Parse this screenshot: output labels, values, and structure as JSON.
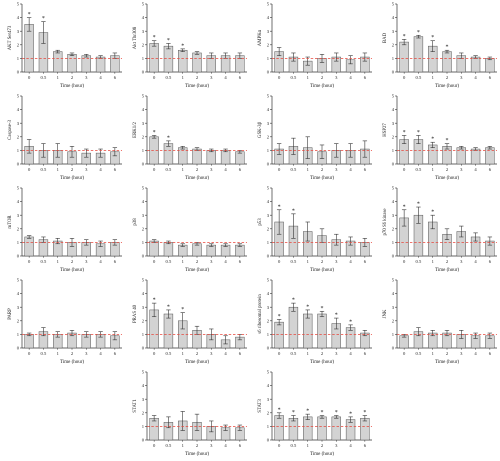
{
  "x_axis_title": "Time (hour)",
  "colors": {
    "bar": "#d3d3d3",
    "bar_edge": "#555555",
    "baseline": "#e8473c",
    "axis": "#333333"
  },
  "chart_data": [
    {
      "type": "bar",
      "ylabel": "AKT Ser473",
      "categories": [
        "0",
        "0.5",
        "1",
        "2",
        "3",
        "4",
        "6"
      ],
      "values": [
        3.5,
        2.9,
        1.5,
        1.3,
        1.2,
        1.1,
        1.2
      ],
      "error": [
        0.5,
        0.8,
        0.1,
        0.1,
        0.1,
        0.1,
        0.2
      ],
      "significant": [
        true,
        true,
        false,
        false,
        false,
        false,
        false
      ],
      "ylim": [
        0,
        5
      ],
      "yticks": [
        "0",
        "1",
        "2",
        "3",
        "4",
        "5"
      ],
      "baseline": 1
    },
    {
      "type": "bar",
      "ylabel": "Akt Thr308",
      "categories": [
        "0",
        "0.5",
        "1",
        "2",
        "3",
        "4",
        "6"
      ],
      "values": [
        2.1,
        1.9,
        1.6,
        1.4,
        1.2,
        1.2,
        1.2
      ],
      "error": [
        0.2,
        0.2,
        0.1,
        0.1,
        0.2,
        0.2,
        0.2
      ],
      "significant": [
        true,
        true,
        true,
        false,
        false,
        false,
        false
      ],
      "ylim": [
        0,
        5
      ],
      "yticks": [
        "0",
        "1",
        "2",
        "3",
        "4",
        "5"
      ],
      "baseline": 1
    },
    {
      "type": "bar",
      "ylabel": "AMPKα",
      "categories": [
        "0",
        "0.5",
        "1",
        "2",
        "3",
        "4",
        "6"
      ],
      "values": [
        1.5,
        1.1,
        0.8,
        1.0,
        1.1,
        0.9,
        1.1
      ],
      "error": [
        0.3,
        0.3,
        0.3,
        0.3,
        0.3,
        0.3,
        0.3
      ],
      "significant": [
        false,
        false,
        false,
        false,
        false,
        false,
        false
      ],
      "ylim": [
        0,
        5
      ],
      "yticks": [
        "0",
        "1",
        "2",
        "3",
        "4",
        "5"
      ],
      "baseline": 1
    },
    {
      "type": "bar",
      "ylabel": "BAD",
      "categories": [
        "0",
        "0.5",
        "1",
        "2",
        "3",
        "4",
        "6"
      ],
      "values": [
        2.2,
        2.6,
        1.9,
        1.5,
        1.2,
        1.1,
        1.0
      ],
      "error": [
        0.2,
        0.1,
        0.4,
        0.1,
        0.2,
        0.1,
        0.1
      ],
      "significant": [
        true,
        true,
        true,
        true,
        false,
        false,
        false
      ],
      "ylim": [
        0,
        5
      ],
      "yticks": [
        "0",
        "1",
        "2",
        "3",
        "4",
        "5"
      ],
      "baseline": 1
    },
    {
      "type": "bar",
      "ylabel": "Caspase-3",
      "categories": [
        "0",
        "0.5",
        "1",
        "2",
        "3",
        "4",
        "6"
      ],
      "values": [
        1.3,
        1.0,
        1.0,
        0.9,
        0.8,
        0.8,
        0.9
      ],
      "error": [
        0.5,
        0.5,
        0.5,
        0.4,
        0.3,
        0.3,
        0.3
      ],
      "significant": [
        false,
        false,
        false,
        false,
        false,
        false,
        false
      ],
      "ylim": [
        0,
        5
      ],
      "yticks": [
        "0",
        "1",
        "2",
        "3",
        "4",
        "5"
      ],
      "baseline": 1
    },
    {
      "type": "bar",
      "ylabel": "ERK1/2",
      "categories": [
        "0",
        "0.5",
        "1",
        "2",
        "3",
        "4",
        "6"
      ],
      "values": [
        2.0,
        1.5,
        1.2,
        1.1,
        1.0,
        1.0,
        0.9
      ],
      "error": [
        0.1,
        0.2,
        0.1,
        0.1,
        0.1,
        0.1,
        0.1
      ],
      "significant": [
        true,
        true,
        false,
        false,
        false,
        false,
        false
      ],
      "ylim": [
        0,
        5
      ],
      "yticks": [
        "0",
        "1",
        "2",
        "3",
        "4",
        "5"
      ],
      "baseline": 1
    },
    {
      "type": "bar",
      "ylabel": "GSK-3β",
      "categories": [
        "0",
        "0.5",
        "1",
        "2",
        "3",
        "4",
        "6"
      ],
      "values": [
        1.1,
        1.3,
        1.2,
        0.9,
        1.0,
        1.0,
        1.1
      ],
      "error": [
        0.4,
        0.6,
        0.8,
        0.5,
        0.5,
        0.5,
        0.6
      ],
      "significant": [
        false,
        false,
        false,
        false,
        false,
        false,
        false
      ],
      "ylim": [
        0,
        5
      ],
      "yticks": [
        "0",
        "1",
        "2",
        "3",
        "4",
        "5"
      ],
      "baseline": 1
    },
    {
      "type": "bar",
      "ylabel": "HSP27",
      "categories": [
        "0",
        "0.5",
        "1",
        "2",
        "3",
        "4",
        "6"
      ],
      "values": [
        1.8,
        1.8,
        1.4,
        1.3,
        1.2,
        1.1,
        1.2
      ],
      "error": [
        0.3,
        0.3,
        0.2,
        0.2,
        0.1,
        0.1,
        0.1
      ],
      "significant": [
        true,
        true,
        true,
        true,
        false,
        false,
        false
      ],
      "ylim": [
        0,
        5
      ],
      "yticks": [
        "0",
        "1",
        "2",
        "3",
        "4",
        "5"
      ],
      "baseline": 1
    },
    {
      "type": "bar",
      "ylabel": "mTOR",
      "categories": [
        "0",
        "0.5",
        "1",
        "2",
        "3",
        "4",
        "6"
      ],
      "values": [
        1.4,
        1.2,
        1.1,
        1.0,
        1.0,
        0.9,
        1.0
      ],
      "error": [
        0.1,
        0.2,
        0.2,
        0.3,
        0.2,
        0.2,
        0.2
      ],
      "significant": [
        false,
        false,
        false,
        false,
        false,
        false,
        false
      ],
      "ylim": [
        0,
        5
      ],
      "yticks": [
        "0",
        "1",
        "2",
        "3",
        "4",
        "5"
      ],
      "baseline": 1
    },
    {
      "type": "bar",
      "ylabel": "p38",
      "categories": [
        "0",
        "0.5",
        "1",
        "2",
        "3",
        "4",
        "6"
      ],
      "values": [
        1.1,
        1.0,
        0.8,
        0.9,
        0.8,
        0.8,
        0.8
      ],
      "error": [
        0.1,
        0.1,
        0.1,
        0.1,
        0.1,
        0.1,
        0.1
      ],
      "significant": [
        false,
        false,
        false,
        false,
        false,
        false,
        false
      ],
      "ylim": [
        0,
        5
      ],
      "yticks": [
        "0",
        "1",
        "2",
        "3",
        "4",
        "5"
      ],
      "baseline": 1
    },
    {
      "type": "bar",
      "ylabel": "p53",
      "categories": [
        "0",
        "0.5",
        "1",
        "2",
        "3",
        "4",
        "6"
      ],
      "values": [
        2.5,
        2.2,
        1.8,
        1.5,
        1.2,
        1.1,
        1.0
      ],
      "error": [
        0.9,
        0.9,
        0.7,
        0.5,
        0.4,
        0.3,
        0.3
      ],
      "significant": [
        true,
        true,
        false,
        false,
        false,
        false,
        false
      ],
      "ylim": [
        0,
        5
      ],
      "yticks": [
        "0",
        "1",
        "2",
        "3",
        "4",
        "5"
      ],
      "baseline": 1
    },
    {
      "type": "bar",
      "ylabel": "p70 S6 kinase",
      "categories": [
        "0",
        "0.5",
        "1",
        "2",
        "3",
        "4",
        "6"
      ],
      "values": [
        2.8,
        3.0,
        2.5,
        1.6,
        1.8,
        1.4,
        1.1
      ],
      "error": [
        0.6,
        0.6,
        0.5,
        0.4,
        0.4,
        0.3,
        0.3
      ],
      "significant": [
        true,
        true,
        true,
        false,
        false,
        false,
        false
      ],
      "ylim": [
        0,
        5
      ],
      "yticks": [
        "0",
        "1",
        "2",
        "3",
        "4",
        "5"
      ],
      "baseline": 1
    },
    {
      "type": "bar",
      "ylabel": "PARP",
      "categories": [
        "0",
        "0.5",
        "1",
        "2",
        "3",
        "4",
        "6"
      ],
      "values": [
        1.0,
        1.2,
        1.0,
        1.1,
        1.0,
        1.0,
        0.9
      ],
      "error": [
        0.1,
        0.3,
        0.2,
        0.2,
        0.2,
        0.2,
        0.3
      ],
      "significant": [
        false,
        false,
        false,
        false,
        false,
        false,
        false
      ],
      "ylim": [
        0,
        5
      ],
      "yticks": [
        "0",
        "1",
        "2",
        "3",
        "4",
        "5"
      ],
      "baseline": 1
    },
    {
      "type": "bar",
      "ylabel": "PRAS 40",
      "categories": [
        "0",
        "0.5",
        "1",
        "2",
        "3",
        "4",
        "6"
      ],
      "values": [
        2.8,
        2.5,
        2.0,
        1.3,
        1.0,
        0.6,
        0.8
      ],
      "error": [
        0.5,
        0.3,
        0.6,
        0.3,
        0.4,
        0.3,
        0.2
      ],
      "significant": [
        true,
        true,
        true,
        false,
        false,
        false,
        false
      ],
      "ylim": [
        0,
        5
      ],
      "yticks": [
        "0",
        "1",
        "2",
        "3",
        "4",
        "5"
      ],
      "baseline": 1
    },
    {
      "type": "bar",
      "ylabel": "s6 ribosomal protein",
      "categories": [
        "0",
        "0.5",
        "1",
        "2",
        "3",
        "4",
        "6"
      ],
      "values": [
        1.9,
        3.0,
        2.5,
        2.5,
        1.8,
        1.5,
        1.1
      ],
      "error": [
        0.2,
        0.3,
        0.3,
        0.2,
        0.4,
        0.2,
        0.2
      ],
      "significant": [
        true,
        true,
        true,
        true,
        true,
        true,
        false
      ],
      "ylim": [
        0,
        5
      ],
      "yticks": [
        "0",
        "1",
        "2",
        "3",
        "4",
        "5"
      ],
      "baseline": 1
    },
    {
      "type": "bar",
      "ylabel": "JNK",
      "categories": [
        "0",
        "0.5",
        "1",
        "2",
        "3",
        "4",
        "6"
      ],
      "values": [
        0.9,
        1.2,
        1.1,
        1.1,
        1.0,
        0.9,
        0.9
      ],
      "error": [
        0.1,
        0.3,
        0.2,
        0.2,
        0.3,
        0.2,
        0.2
      ],
      "significant": [
        false,
        false,
        false,
        false,
        false,
        false,
        false
      ],
      "ylim": [
        0,
        5
      ],
      "yticks": [
        "0",
        "1",
        "2",
        "3",
        "4",
        "5"
      ],
      "baseline": 1
    },
    {
      "type": "bar",
      "ylabel": "STAT1",
      "categories": [
        "0",
        "0.5",
        "1",
        "2",
        "3",
        "4",
        "6"
      ],
      "values": [
        1.6,
        1.3,
        1.4,
        1.3,
        1.0,
        0.9,
        0.9
      ],
      "error": [
        0.2,
        0.4,
        0.7,
        0.6,
        0.4,
        0.2,
        0.2
      ],
      "significant": [
        false,
        false,
        false,
        false,
        false,
        false,
        false
      ],
      "ylim": [
        0,
        5
      ],
      "yticks": [
        "0",
        "1",
        "2",
        "3",
        "4",
        "5"
      ],
      "baseline": 1
    },
    {
      "type": "bar",
      "ylabel": "STAT3",
      "categories": [
        "0",
        "0.5",
        "1",
        "2",
        "3",
        "4",
        "6"
      ],
      "values": [
        1.8,
        1.6,
        1.7,
        1.7,
        1.7,
        1.5,
        1.6
      ],
      "error": [
        0.2,
        0.2,
        0.2,
        0.1,
        0.1,
        0.2,
        0.2
      ],
      "significant": [
        true,
        true,
        true,
        true,
        true,
        true,
        true
      ],
      "ylim": [
        0,
        5
      ],
      "yticks": [
        "0",
        "1",
        "2",
        "3",
        "4",
        "5"
      ],
      "baseline": 1
    }
  ]
}
